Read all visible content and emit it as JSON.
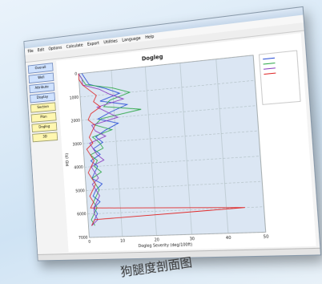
{
  "menu": [
    "File",
    "Edit",
    "Options",
    "Calculate",
    "Export",
    "Utilities",
    "Language",
    "Help"
  ],
  "buttons": [
    "Overall",
    "Well",
    "Attribute",
    "Display",
    "Section",
    "Plan",
    "Dogleg",
    "3D"
  ],
  "caption": "狗腿度剖面图",
  "chart_data": {
    "type": "line",
    "title": "Dogleg",
    "xlabel": "Dogleg Severity (deg/100ft)",
    "ylabel": "MD (ft)",
    "y": [
      0,
      250,
      500,
      750,
      1000,
      1250,
      1500,
      1750,
      2000,
      2250,
      2500,
      2750,
      3000,
      3250,
      3500,
      3750,
      4000,
      4250,
      4500,
      4750,
      5000,
      5250,
      5500,
      5750,
      6000,
      6250,
      6500
    ],
    "series": [
      {
        "color": "#2a4fd6",
        "values": [
          1,
          2,
          3,
          8,
          12,
          6,
          14,
          9,
          5,
          11,
          7,
          4,
          6,
          3,
          5,
          2,
          4,
          3,
          2,
          5,
          3,
          2,
          4,
          2,
          3,
          2,
          1
        ]
      },
      {
        "color": "#2fa84a",
        "values": [
          0,
          1,
          2,
          10,
          15,
          9,
          7,
          18,
          6,
          4,
          9,
          3,
          5,
          6,
          2,
          4,
          3,
          5,
          2,
          3,
          4,
          3,
          2,
          3,
          2,
          1,
          2
        ]
      },
      {
        "color": "#8a3fc0",
        "values": [
          0,
          1,
          1,
          6,
          9,
          13,
          5,
          8,
          11,
          3,
          4,
          7,
          2,
          3,
          4,
          6,
          2,
          3,
          4,
          2,
          3,
          4,
          3,
          2,
          2,
          3,
          1
        ]
      },
      {
        "color": "#e02a2a",
        "values": [
          0,
          0,
          1,
          3,
          5,
          4,
          6,
          3,
          2,
          4,
          3,
          2,
          3,
          1,
          2,
          3,
          2,
          1,
          2,
          3,
          2,
          1,
          2,
          1,
          45,
          2,
          1
        ]
      }
    ],
    "xlim": [
      0,
      50
    ],
    "xticks": [
      0,
      10,
      20,
      30,
      40,
      50
    ],
    "ylim": [
      0,
      7000
    ],
    "yticks": [
      0,
      1000,
      2000,
      3000,
      4000,
      5000,
      6000,
      7000
    ],
    "y_inverted": true,
    "grid": true
  }
}
